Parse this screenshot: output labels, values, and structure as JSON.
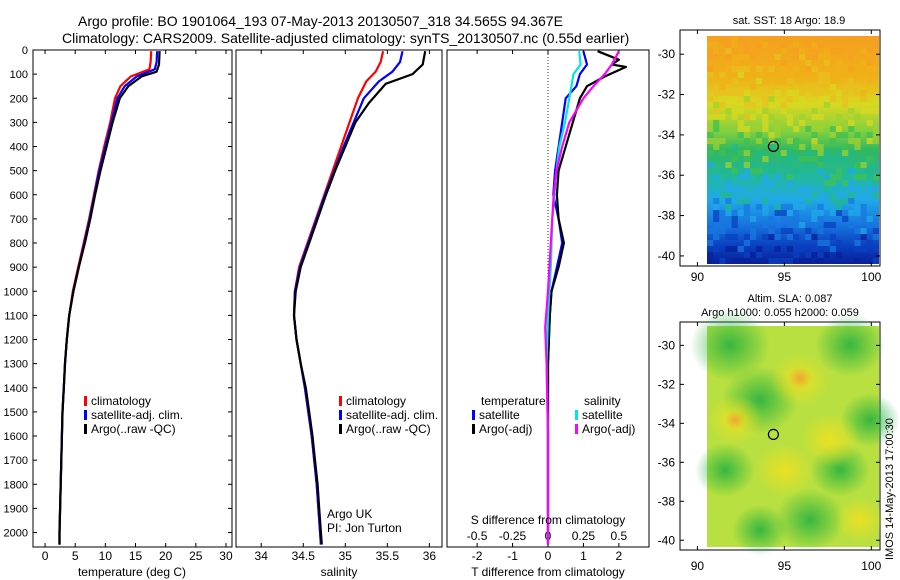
{
  "header": {
    "line1": "Argo profile: BO 1901064_193 07-May-2013 20130507_318 34.565S 94.367E",
    "line2": "Climatology: CARS2009. Satellite-adjusted climatology: synTS_20130507.nc (0.55d earlier)"
  },
  "depth_ticks": [
    "0",
    "100",
    "200",
    "300",
    "400",
    "500",
    "600",
    "700",
    "800",
    "900",
    "1000",
    "1100",
    "1200",
    "1300",
    "1400",
    "1500",
    "1600",
    "1700",
    "1800",
    "1900",
    "2000"
  ],
  "colors": {
    "climatology": "#ff0000",
    "satellite": "#0000ff",
    "argo": "#000000",
    "sat_salinity": "#00e5e5",
    "argo_salinity": "#ff00ff"
  },
  "chart_data": [
    {
      "type": "line",
      "xlabel": "temperature (deg C)",
      "x_ticks": [
        "0",
        "5",
        "10",
        "15",
        "20",
        "25",
        "30"
      ],
      "xlim": [
        -2,
        31
      ],
      "ylim": [
        2060,
        0
      ],
      "legend": [
        {
          "label": "climatology",
          "color": "#ff0000"
        },
        {
          "label": "satellite-adj. clim.",
          "color": "#0000ff"
        },
        {
          "label": "Argo(..raw -QC)",
          "color": "#000000"
        }
      ],
      "series": [
        {
          "name": "climatology",
          "color": "#ff0000",
          "points": [
            [
              17.6,
              5
            ],
            [
              17.5,
              50
            ],
            [
              17.3,
              80
            ],
            [
              14.2,
              110
            ],
            [
              12.5,
              150
            ],
            [
              11.6,
              200
            ],
            [
              10.8,
              300
            ],
            [
              9.8,
              400
            ],
            [
              8.9,
              500
            ],
            [
              8.1,
              600
            ],
            [
              7.3,
              700
            ],
            [
              6.4,
              800
            ],
            [
              5.5,
              900
            ],
            [
              4.6,
              1000
            ],
            [
              4.0,
              1100
            ],
            [
              3.6,
              1200
            ],
            [
              3.3,
              1300
            ],
            [
              3.1,
              1400
            ],
            [
              2.9,
              1500
            ],
            [
              2.8,
              1600
            ],
            [
              2.7,
              1700
            ],
            [
              2.6,
              1800
            ],
            [
              2.5,
              1900
            ],
            [
              2.4,
              2000
            ],
            [
              2.4,
              2050
            ]
          ]
        },
        {
          "name": "satellite-adj. clim.",
          "color": "#0000ff",
          "points": [
            [
              18.6,
              5
            ],
            [
              18.5,
              50
            ],
            [
              18.2,
              80
            ],
            [
              15.2,
              110
            ],
            [
              13.2,
              150
            ],
            [
              12.0,
              200
            ],
            [
              11.0,
              300
            ],
            [
              10.0,
              400
            ],
            [
              9.0,
              500
            ],
            [
              8.2,
              600
            ],
            [
              7.4,
              700
            ],
            [
              6.5,
              800
            ],
            [
              5.6,
              900
            ],
            [
              4.7,
              1000
            ],
            [
              4.0,
              1100
            ],
            [
              3.6,
              1200
            ],
            [
              3.3,
              1300
            ],
            [
              3.1,
              1400
            ],
            [
              2.9,
              1500
            ],
            [
              2.8,
              1600
            ],
            [
              2.7,
              1700
            ],
            [
              2.6,
              1800
            ],
            [
              2.5,
              1900
            ],
            [
              2.4,
              2000
            ],
            [
              2.4,
              2050
            ]
          ]
        },
        {
          "name": "Argo(..raw -QC)",
          "color": "#000000",
          "points": [
            [
              19.0,
              5
            ],
            [
              18.9,
              60
            ],
            [
              18.5,
              90
            ],
            [
              16.0,
              110
            ],
            [
              13.8,
              150
            ],
            [
              12.4,
              200
            ],
            [
              11.2,
              300
            ],
            [
              10.2,
              400
            ],
            [
              9.2,
              500
            ],
            [
              8.3,
              600
            ],
            [
              7.5,
              700
            ],
            [
              6.6,
              800
            ],
            [
              5.6,
              900
            ],
            [
              4.7,
              1000
            ],
            [
              4.0,
              1100
            ],
            [
              3.6,
              1200
            ],
            [
              3.3,
              1300
            ],
            [
              3.1,
              1400
            ],
            [
              2.9,
              1500
            ],
            [
              2.8,
              1600
            ],
            [
              2.7,
              1700
            ],
            [
              2.6,
              1800
            ],
            [
              2.5,
              1900
            ],
            [
              2.4,
              2000
            ],
            [
              2.4,
              2050
            ]
          ]
        }
      ]
    },
    {
      "type": "line",
      "xlabel": "salinity",
      "x_ticks": [
        "34",
        "34.5",
        "35",
        "35.5",
        "36"
      ],
      "xlim": [
        33.7,
        36.15
      ],
      "ylim": [
        2060,
        0
      ],
      "legend": [
        {
          "label": "climatology",
          "color": "#ff0000"
        },
        {
          "label": "satellite-adj. clim.",
          "color": "#0000ff"
        },
        {
          "label": "Argo(..raw -QC)",
          "color": "#000000"
        }
      ],
      "annotation": [
        "Argo UK",
        "PI: Jon Turton"
      ],
      "series": [
        {
          "name": "climatology",
          "color": "#ff0000",
          "points": [
            [
              35.45,
              5
            ],
            [
              35.42,
              50
            ],
            [
              35.36,
              90
            ],
            [
              35.25,
              130
            ],
            [
              35.15,
              200
            ],
            [
              35.05,
              300
            ],
            [
              34.95,
              400
            ],
            [
              34.85,
              500
            ],
            [
              34.75,
              600
            ],
            [
              34.65,
              700
            ],
            [
              34.55,
              800
            ],
            [
              34.45,
              900
            ],
            [
              34.4,
              1000
            ],
            [
              34.39,
              1100
            ],
            [
              34.42,
              1200
            ],
            [
              34.47,
              1300
            ],
            [
              34.52,
              1400
            ],
            [
              34.56,
              1500
            ],
            [
              34.6,
              1600
            ],
            [
              34.63,
              1700
            ],
            [
              34.66,
              1800
            ],
            [
              34.68,
              1900
            ],
            [
              34.7,
              2000
            ],
            [
              34.71,
              2050
            ]
          ]
        },
        {
          "name": "satellite-adj. clim.",
          "color": "#0000ff",
          "points": [
            [
              35.68,
              5
            ],
            [
              35.65,
              50
            ],
            [
              35.56,
              90
            ],
            [
              35.4,
              130
            ],
            [
              35.22,
              200
            ],
            [
              35.1,
              300
            ],
            [
              34.98,
              400
            ],
            [
              34.87,
              500
            ],
            [
              34.76,
              600
            ],
            [
              34.66,
              700
            ],
            [
              34.56,
              800
            ],
            [
              34.46,
              900
            ],
            [
              34.4,
              1000
            ],
            [
              34.39,
              1100
            ],
            [
              34.42,
              1200
            ],
            [
              34.47,
              1300
            ],
            [
              34.52,
              1400
            ],
            [
              34.56,
              1500
            ],
            [
              34.6,
              1600
            ],
            [
              34.63,
              1700
            ],
            [
              34.66,
              1800
            ],
            [
              34.68,
              1900
            ],
            [
              34.7,
              2000
            ],
            [
              34.71,
              2050
            ]
          ]
        },
        {
          "name": "Argo(..raw -QC)",
          "color": "#000000",
          "points": [
            [
              35.95,
              5
            ],
            [
              35.92,
              60
            ],
            [
              35.8,
              100
            ],
            [
              35.48,
              140
            ],
            [
              35.28,
              220
            ],
            [
              35.12,
              300
            ],
            [
              35.0,
              400
            ],
            [
              34.88,
              500
            ],
            [
              34.77,
              600
            ],
            [
              34.67,
              700
            ],
            [
              34.57,
              800
            ],
            [
              34.47,
              900
            ],
            [
              34.41,
              1000
            ],
            [
              34.39,
              1100
            ],
            [
              34.42,
              1200
            ],
            [
              34.47,
              1300
            ],
            [
              34.53,
              1400
            ],
            [
              34.57,
              1500
            ],
            [
              34.61,
              1600
            ],
            [
              34.64,
              1700
            ],
            [
              34.67,
              1800
            ],
            [
              34.69,
              1900
            ],
            [
              34.71,
              2000
            ],
            [
              34.72,
              2050
            ]
          ]
        }
      ]
    },
    {
      "type": "line",
      "xlabel": "T difference from climatology",
      "xlabel2": "S difference from climatology",
      "x_ticks": [
        "-2",
        "-1",
        "0",
        "1",
        "2"
      ],
      "x_ticks_s": [
        "-0.5",
        "-0.25",
        "0",
        "0.25",
        "0.5"
      ],
      "xlim": [
        -2.85,
        2.85
      ],
      "ylim": [
        2060,
        0
      ],
      "legend_titles": [
        "temperature",
        "salinity"
      ],
      "legend": [
        {
          "label": "satellite",
          "color": "#0000ff",
          "col": 0
        },
        {
          "label": "Argo(-adj)",
          "color": "#000000",
          "col": 0
        },
        {
          "label": "satellite",
          "color": "#00e5e5",
          "col": 1
        },
        {
          "label": "Argo(-adj)",
          "color": "#ff00ff",
          "col": 1
        }
      ],
      "series": [
        {
          "name": "T satellite",
          "color": "#0000ff",
          "points": [
            [
              1.0,
              5
            ],
            [
              1.1,
              60
            ],
            [
              0.9,
              100
            ],
            [
              0.8,
              150
            ],
            [
              0.5,
              200
            ],
            [
              0.4,
              300
            ],
            [
              0.3,
              400
            ],
            [
              0.2,
              500
            ],
            [
              0.15,
              600
            ],
            [
              0.3,
              700
            ],
            [
              0.4,
              800
            ],
            [
              0.25,
              900
            ],
            [
              0.1,
              1000
            ],
            [
              0.05,
              1100
            ],
            [
              0.0,
              1300
            ],
            [
              0.0,
              2050
            ]
          ]
        },
        {
          "name": "T Argo",
          "color": "#000000",
          "points": [
            [
              1.4,
              5
            ],
            [
              2.0,
              40
            ],
            [
              1.8,
              60
            ],
            [
              2.2,
              70
            ],
            [
              1.6,
              110
            ],
            [
              1.1,
              150
            ],
            [
              0.9,
              200
            ],
            [
              0.7,
              300
            ],
            [
              0.5,
              400
            ],
            [
              0.3,
              500
            ],
            [
              0.25,
              600
            ],
            [
              0.3,
              700
            ],
            [
              0.45,
              800
            ],
            [
              0.3,
              900
            ],
            [
              0.1,
              1000
            ],
            [
              0.05,
              1100
            ],
            [
              0.0,
              1300
            ],
            [
              0.0,
              2050
            ]
          ]
        },
        {
          "name": "S satellite",
          "color": "#00e5e5",
          "points": [
            [
              0.22,
              5
            ],
            [
              0.23,
              60
            ],
            [
              0.18,
              100
            ],
            [
              0.15,
              200
            ],
            [
              0.12,
              300
            ],
            [
              0.08,
              400
            ],
            [
              0.06,
              500
            ],
            [
              0.03,
              700
            ],
            [
              0.02,
              900
            ],
            [
              0.0,
              1100
            ],
            [
              -0.01,
              1300
            ],
            [
              0.0,
              1600
            ],
            [
              0.0,
              2050
            ]
          ]
        },
        {
          "name": "S Argo",
          "color": "#ff00ff",
          "points": [
            [
              0.5,
              5
            ],
            [
              0.45,
              60
            ],
            [
              0.4,
              100
            ],
            [
              0.32,
              150
            ],
            [
              0.25,
              200
            ],
            [
              0.15,
              300
            ],
            [
              0.1,
              400
            ],
            [
              0.06,
              500
            ],
            [
              0.04,
              600
            ],
            [
              0.02,
              800
            ],
            [
              0.01,
              900
            ],
            [
              0.0,
              1000
            ],
            [
              -0.02,
              1150
            ],
            [
              -0.01,
              1300
            ],
            [
              0.0,
              1600
            ],
            [
              0.0,
              2050
            ]
          ]
        }
      ]
    },
    {
      "type": "heatmap",
      "title": "sat. SST: 18 Argo: 18.9",
      "x_ticks": [
        "90",
        "95",
        "100"
      ],
      "y_ticks": [
        "-30",
        "-32",
        "-34",
        "-36",
        "-38",
        "-40"
      ],
      "xlim": [
        89,
        100.5
      ],
      "ylim": [
        -40.5,
        -28.8
      ],
      "marker": [
        94.37,
        -34.57
      ]
    },
    {
      "type": "heatmap",
      "title": "Altim. SLA: 0.087",
      "subtitle": "Argo h1000: 0.055 h2000: 0.059",
      "x_ticks": [
        "90",
        "95",
        "100"
      ],
      "y_ticks": [
        "-30",
        "-32",
        "-34",
        "-36",
        "-38",
        "-40"
      ],
      "xlim": [
        89,
        100.5
      ],
      "ylim": [
        -40.5,
        -28.8
      ],
      "marker": [
        94.37,
        -34.57
      ]
    }
  ],
  "footer": {
    "stamp": "IMOS 14-May-2013 17:00:30"
  }
}
